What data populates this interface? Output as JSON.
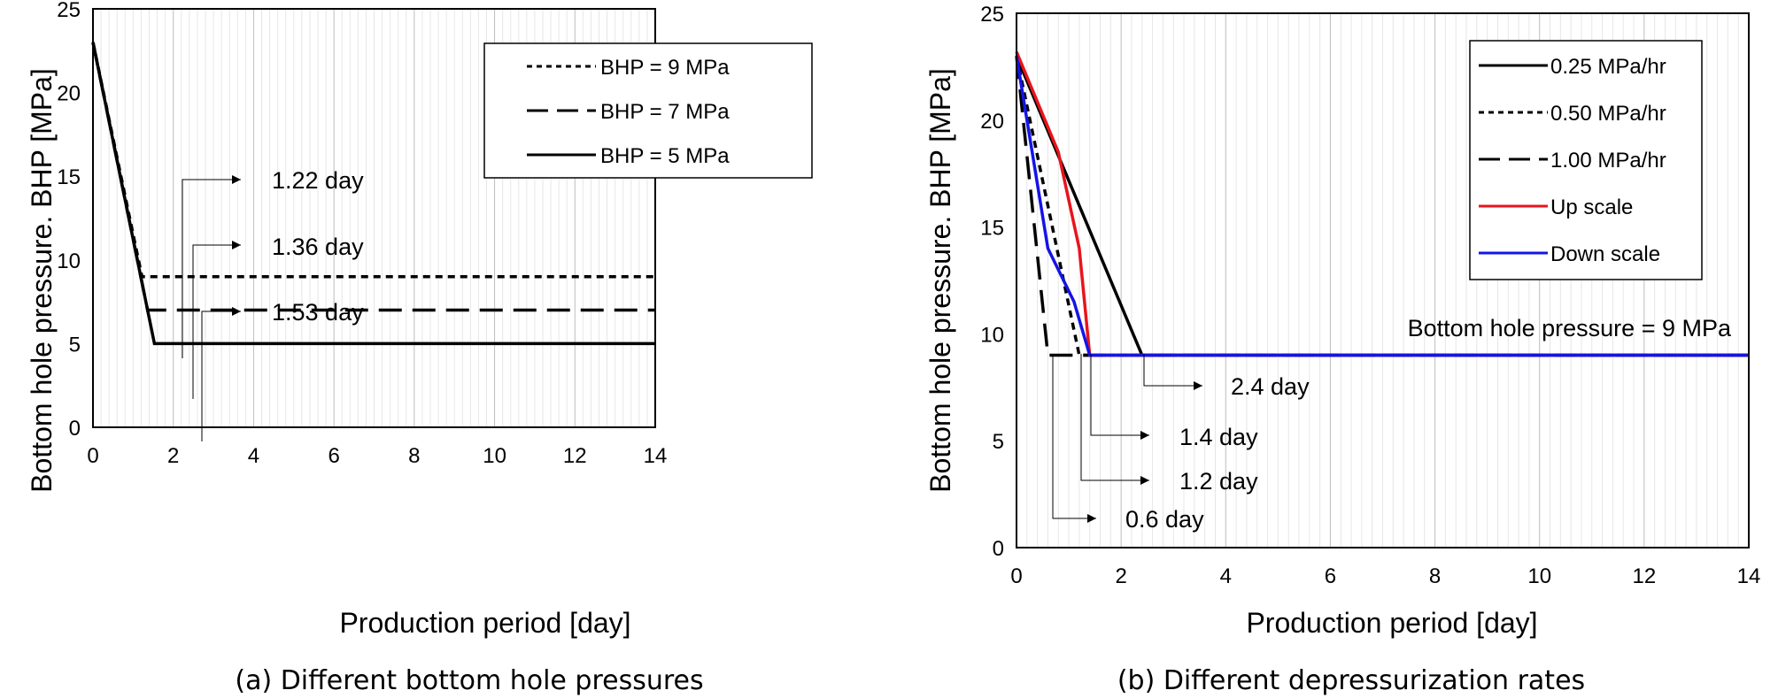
{
  "figure": {
    "caption_a": "(a) Different bottom hole pressures",
    "caption_b": "(b) Different depressurization rates"
  },
  "colors": {
    "line": "#000000",
    "up_scale": "#e8141c",
    "down_scale": "#1414e6",
    "grid": "#d0d0d0"
  },
  "chart_data": [
    {
      "type": "line",
      "xlabel": "Production period [day]",
      "ylabel": "Bottom hole pressure. BHP [MPa]",
      "xlim": [
        0,
        14
      ],
      "ylim": [
        0,
        25
      ],
      "xticks": [
        0,
        2,
        4,
        6,
        8,
        10,
        12,
        14
      ],
      "yticks": [
        0,
        5,
        10,
        15,
        20,
        25
      ],
      "xtick_labels": [
        "0",
        "2",
        "4",
        "6",
        "8",
        "10",
        "12",
        "14"
      ],
      "ytick_labels": [
        "0",
        "5",
        "10",
        "15",
        "20",
        "25"
      ],
      "grid": "vertical minor",
      "legend_position": "top-right",
      "series": [
        {
          "name": "BHP = 9 MPa",
          "style": "dotted",
          "x": [
            0,
            1.22,
            14
          ],
          "y": [
            23,
            9,
            9
          ]
        },
        {
          "name": "BHP = 7 MPa",
          "style": "dashed",
          "x": [
            0,
            1.36,
            14
          ],
          "y": [
            23,
            7,
            7
          ]
        },
        {
          "name": "BHP = 5 MPa",
          "style": "solid",
          "x": [
            0,
            1.53,
            14
          ],
          "y": [
            23,
            5,
            5
          ]
        }
      ],
      "annotations": [
        {
          "text": "1.22 day",
          "x": 1.22
        },
        {
          "text": "1.36 day",
          "x": 1.36
        },
        {
          "text": "1.53 day",
          "x": 1.53
        }
      ]
    },
    {
      "type": "line",
      "xlabel": "Production period [day]",
      "ylabel": "Bottom hole pressure. BHP [MPa]",
      "xlim": [
        0,
        14
      ],
      "ylim": [
        0,
        25
      ],
      "xticks": [
        0,
        2,
        4,
        6,
        8,
        10,
        12,
        14
      ],
      "yticks": [
        0,
        5,
        10,
        15,
        20,
        25
      ],
      "xtick_labels": [
        "0",
        "2",
        "4",
        "6",
        "8",
        "10",
        "12",
        "14"
      ],
      "ytick_labels": [
        "0",
        "5",
        "10",
        "15",
        "20",
        "25"
      ],
      "grid": "vertical minor",
      "legend_position": "top-right",
      "series": [
        {
          "name": "0.25 MPa/hr",
          "style": "solid",
          "color": "#000000",
          "x": [
            0,
            2.4,
            14
          ],
          "y": [
            23,
            9,
            9
          ]
        },
        {
          "name": "0.50 MPa/hr",
          "style": "dotted",
          "color": "#000000",
          "x": [
            0,
            1.2,
            14
          ],
          "y": [
            23,
            9,
            9
          ]
        },
        {
          "name": "1.00 MPa/hr",
          "style": "dashed",
          "color": "#000000",
          "x": [
            0,
            0.6,
            14
          ],
          "y": [
            23,
            9,
            9
          ]
        },
        {
          "name": "Up scale",
          "style": "solid",
          "color": "#e8141c",
          "x": [
            0,
            0.8,
            1.2,
            1.4,
            14
          ],
          "y": [
            23.2,
            18.5,
            14,
            9,
            9
          ]
        },
        {
          "name": "Down scale",
          "style": "solid",
          "color": "#1414e6",
          "x": [
            0,
            0.2,
            0.6,
            1.1,
            1.4,
            14
          ],
          "y": [
            23,
            20,
            14,
            11.5,
            9,
            9
          ]
        }
      ],
      "annotations": [
        {
          "text": "Bottom hole pressure = 9 MPa"
        },
        {
          "text": "2.4 day",
          "x": 2.4
        },
        {
          "text": "1.4 day",
          "x": 1.4
        },
        {
          "text": "1.2 day",
          "x": 1.2
        },
        {
          "text": "0.6 day",
          "x": 0.6
        }
      ]
    }
  ]
}
